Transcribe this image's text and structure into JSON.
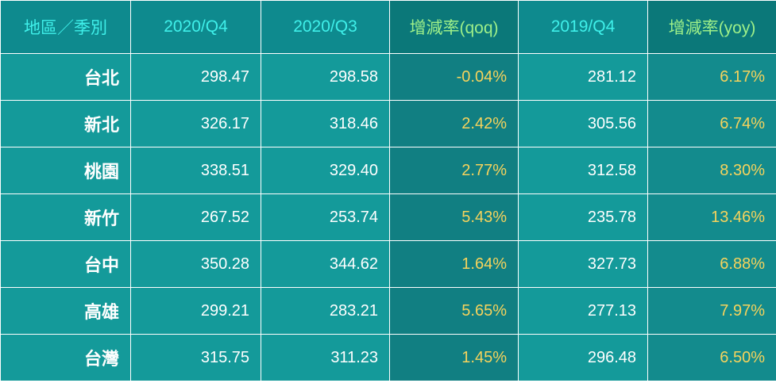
{
  "headers": [
    "地區／季別",
    "2020/Q4",
    "2020/Q3",
    "增減率(qoq)",
    "2019/Q4",
    "增減率(yoy)"
  ],
  "rows": [
    [
      "台北",
      "298.47",
      "298.58",
      "-0.04%",
      "281.12",
      "6.17%"
    ],
    [
      "新北",
      "326.17",
      "318.46",
      "2.42%",
      "305.56",
      "6.74%"
    ],
    [
      "桃園",
      "338.51",
      "329.40",
      "2.77%",
      "312.58",
      "8.30%"
    ],
    [
      "新竹",
      "267.52",
      "253.74",
      "5.43%",
      "235.78",
      "13.46%"
    ],
    [
      "台中",
      "350.28",
      "344.62",
      "1.64%",
      "327.73",
      "6.88%"
    ],
    [
      "高雄",
      "299.21",
      "283.21",
      "5.65%",
      "277.13",
      "7.97%"
    ],
    [
      "台灣",
      "315.75",
      "311.23",
      "1.45%",
      "296.48",
      "6.50%"
    ]
  ],
  "colors": {
    "header_text": "#3ff0ea",
    "rate_header_text": "#9ef089",
    "rate_text": "#f6d35c",
    "cell_bg": "#149a9a",
    "header_bg": "#0e8a8e"
  }
}
